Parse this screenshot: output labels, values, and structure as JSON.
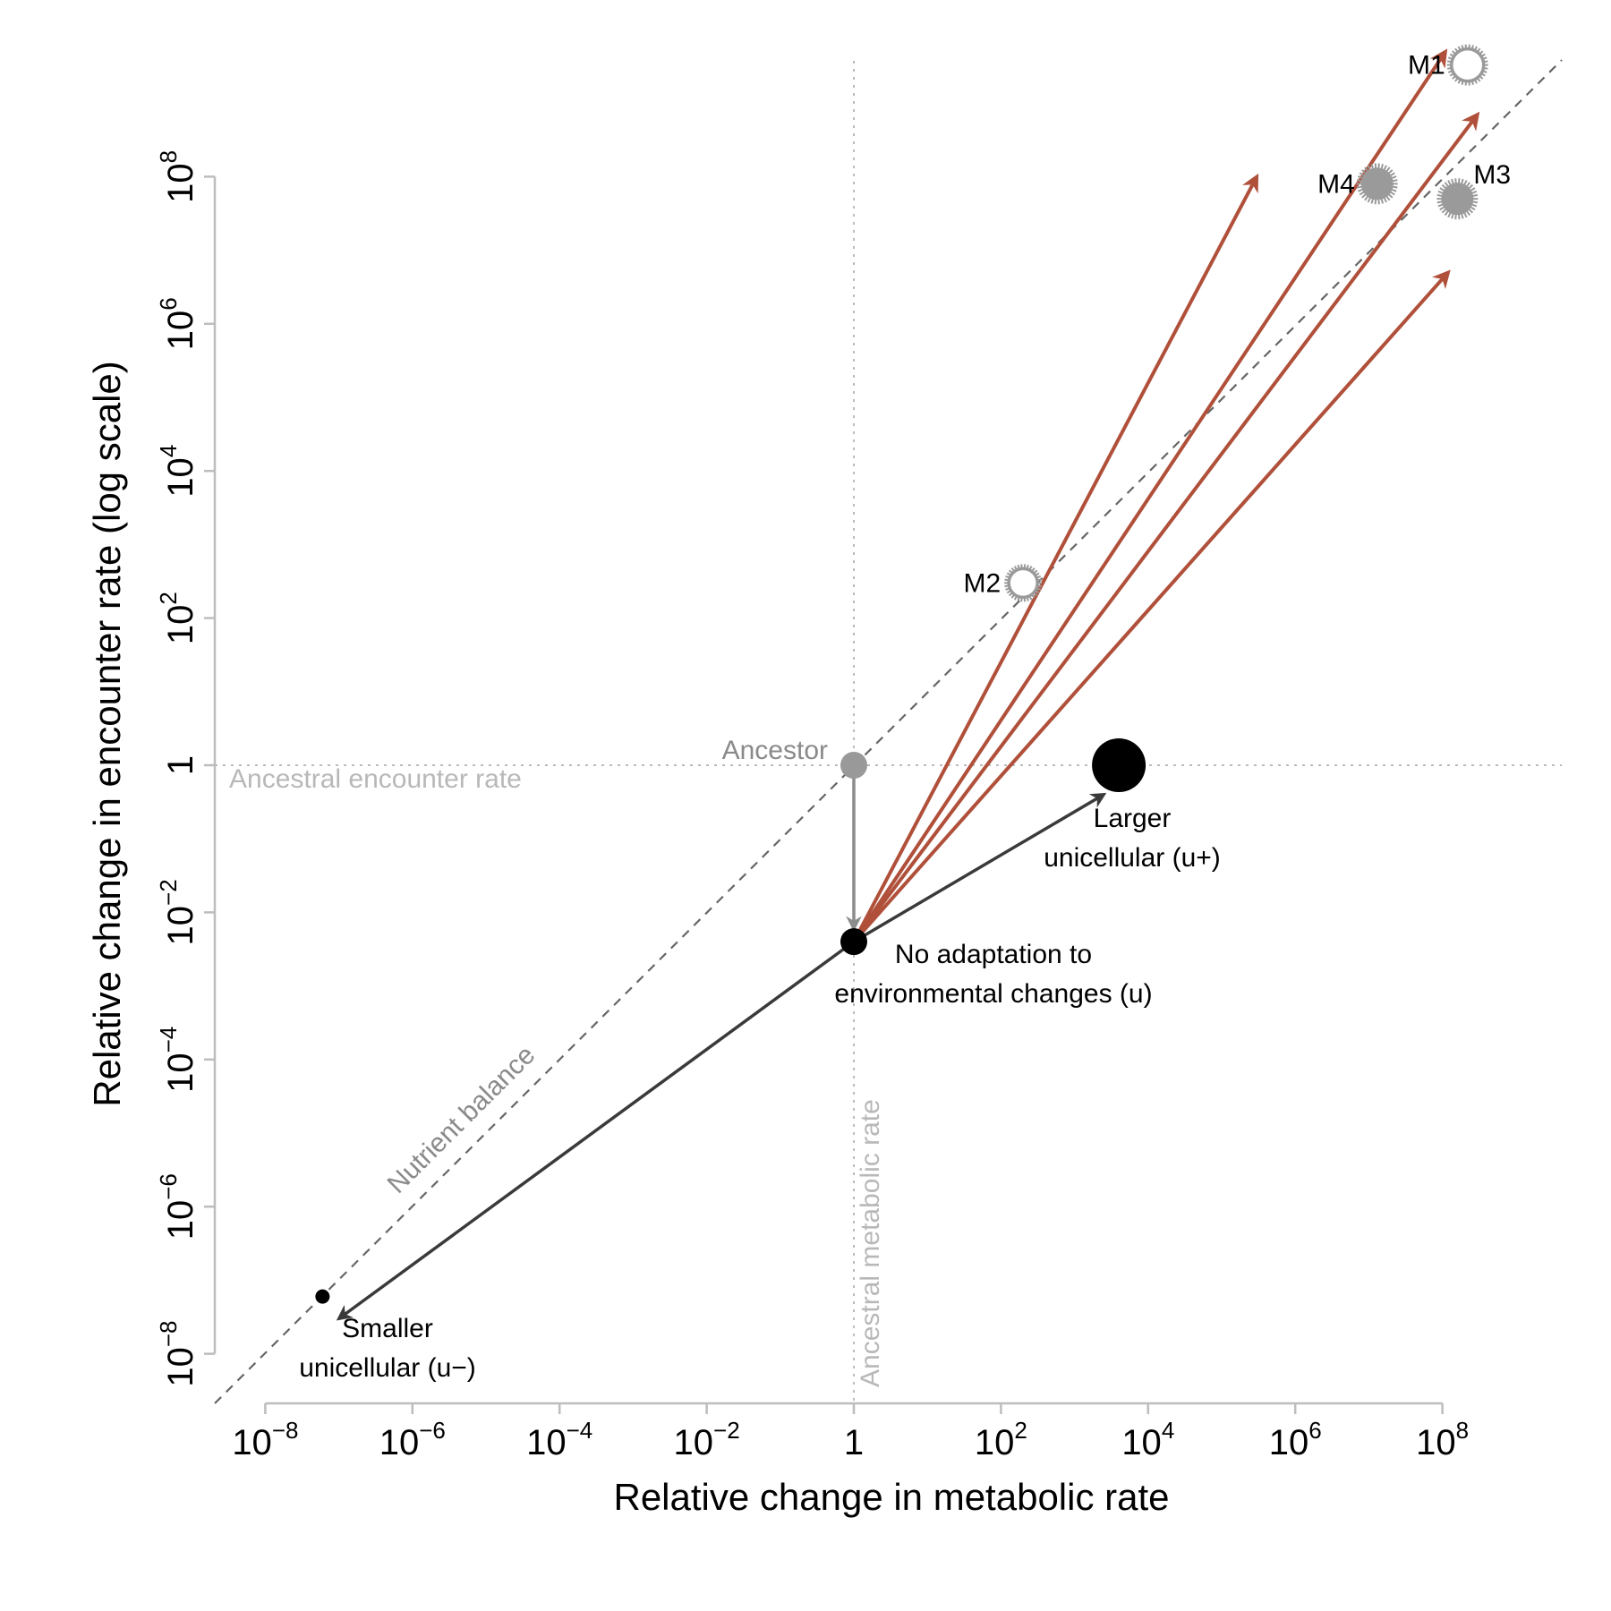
{
  "chart_data": {
    "type": "scatter",
    "xlabel": "Relative change in metabolic rate",
    "ylabel": "Relative change in encounter rate (log scale)",
    "x_scale": "log",
    "y_scale": "log",
    "xlim": [
      1e-08,
      100000000.0
    ],
    "ylim": [
      1e-08,
      100000000.0
    ],
    "grid": false,
    "x_ticks": [
      {
        "value": 1e-08,
        "base": "10",
        "exp": "−8"
      },
      {
        "value": 1e-06,
        "base": "10",
        "exp": "−6"
      },
      {
        "value": 0.0001,
        "base": "10",
        "exp": "−4"
      },
      {
        "value": 0.01,
        "base": "10",
        "exp": "−2"
      },
      {
        "value": 1,
        "base": "1",
        "exp": ""
      },
      {
        "value": 100.0,
        "base": "10",
        "exp": "2"
      },
      {
        "value": 10000.0,
        "base": "10",
        "exp": "4"
      },
      {
        "value": 1000000.0,
        "base": "10",
        "exp": "6"
      },
      {
        "value": 100000000.0,
        "base": "10",
        "exp": "8"
      }
    ],
    "y_ticks": [
      {
        "value": 1e-08,
        "base": "10",
        "exp": "−8"
      },
      {
        "value": 1e-06,
        "base": "10",
        "exp": "−6"
      },
      {
        "value": 0.0001,
        "base": "10",
        "exp": "−4"
      },
      {
        "value": 0.01,
        "base": "10",
        "exp": "−2"
      },
      {
        "value": 1,
        "base": "1",
        "exp": ""
      },
      {
        "value": 100.0,
        "base": "10",
        "exp": "2"
      },
      {
        "value": 10000.0,
        "base": "10",
        "exp": "4"
      },
      {
        "value": 1000000.0,
        "base": "10",
        "exp": "6"
      },
      {
        "value": 100000000.0,
        "base": "10",
        "exp": "8"
      }
    ],
    "reference_lines": {
      "horizontal": {
        "value": 1,
        "label": "Ancestral encounter rate"
      },
      "vertical": {
        "value": 1,
        "label": "Ancestral metabolic rate"
      },
      "diagonal_label": "Nutrient balance"
    },
    "points": [
      {
        "name": "Ancestor",
        "label": [
          "Ancestor"
        ],
        "x": 1,
        "y": 1,
        "color": "#999999",
        "size": "medium"
      },
      {
        "name": "No adaptation to environmental changes (u)",
        "label": [
          "No adaptation to",
          "environmental changes (u)"
        ],
        "x": 1,
        "y": 0.004,
        "color": "#000000",
        "size": "medium"
      },
      {
        "name": "Larger unicellular (u+)",
        "label": [
          "Larger",
          "unicellular (u+)"
        ],
        "x": 4000,
        "y": 1,
        "color": "#000000",
        "size": "large"
      },
      {
        "name": "Smaller unicellular (u−)",
        "label": [
          "Smaller",
          "unicellular (u−)"
        ],
        "x": 6e-08,
        "y": 6e-08,
        "color": "#000000",
        "size": "small"
      }
    ],
    "multicellular": [
      {
        "name": "M1",
        "x": 220000000.0,
        "y": 3300000000.0,
        "style": "hollow"
      },
      {
        "name": "M2",
        "x": 200,
        "y": 300,
        "style": "hollow"
      },
      {
        "name": "M3",
        "x": 160000000.0,
        "y": 50000000.0,
        "style": "filled"
      },
      {
        "name": "M4",
        "x": 13000000.0,
        "y": 80000000.0,
        "style": "filled"
      }
    ],
    "arrows": [
      {
        "from": [
          1,
          1
        ],
        "to": [
          1,
          0.006
        ],
        "color": "#8c8c8c"
      },
      {
        "from": [
          1,
          0.004
        ],
        "to": [
          2500,
          0.4
        ],
        "color": "#3a3a3a"
      },
      {
        "from": [
          1,
          0.004
        ],
        "to": [
          1e-07,
          3e-08
        ],
        "color": "#3a3a3a"
      },
      {
        "from": [
          1,
          0.004
        ],
        "to": [
          300000.0,
          100000000.0
        ],
        "color": "#b0503a"
      },
      {
        "from": [
          1,
          0.004
        ],
        "to": [
          110000000.0,
          5000000000.0
        ],
        "color": "#b0503a"
      },
      {
        "from": [
          1,
          0.004
        ],
        "to": [
          300000000.0,
          700000000.0
        ],
        "color": "#b0503a"
      },
      {
        "from": [
          1,
          0.004
        ],
        "to": [
          120000000.0,
          5000000.0
        ],
        "color": "#b0503a"
      }
    ],
    "colors": {
      "evolution_arrows": "#b0503a",
      "unicellular_arrows": "#3a3a3a",
      "ancestor": "#999999",
      "reference_lines": "#bbbbbb",
      "diagonal": "#666666",
      "multicellular": "#9a9a9a"
    }
  }
}
